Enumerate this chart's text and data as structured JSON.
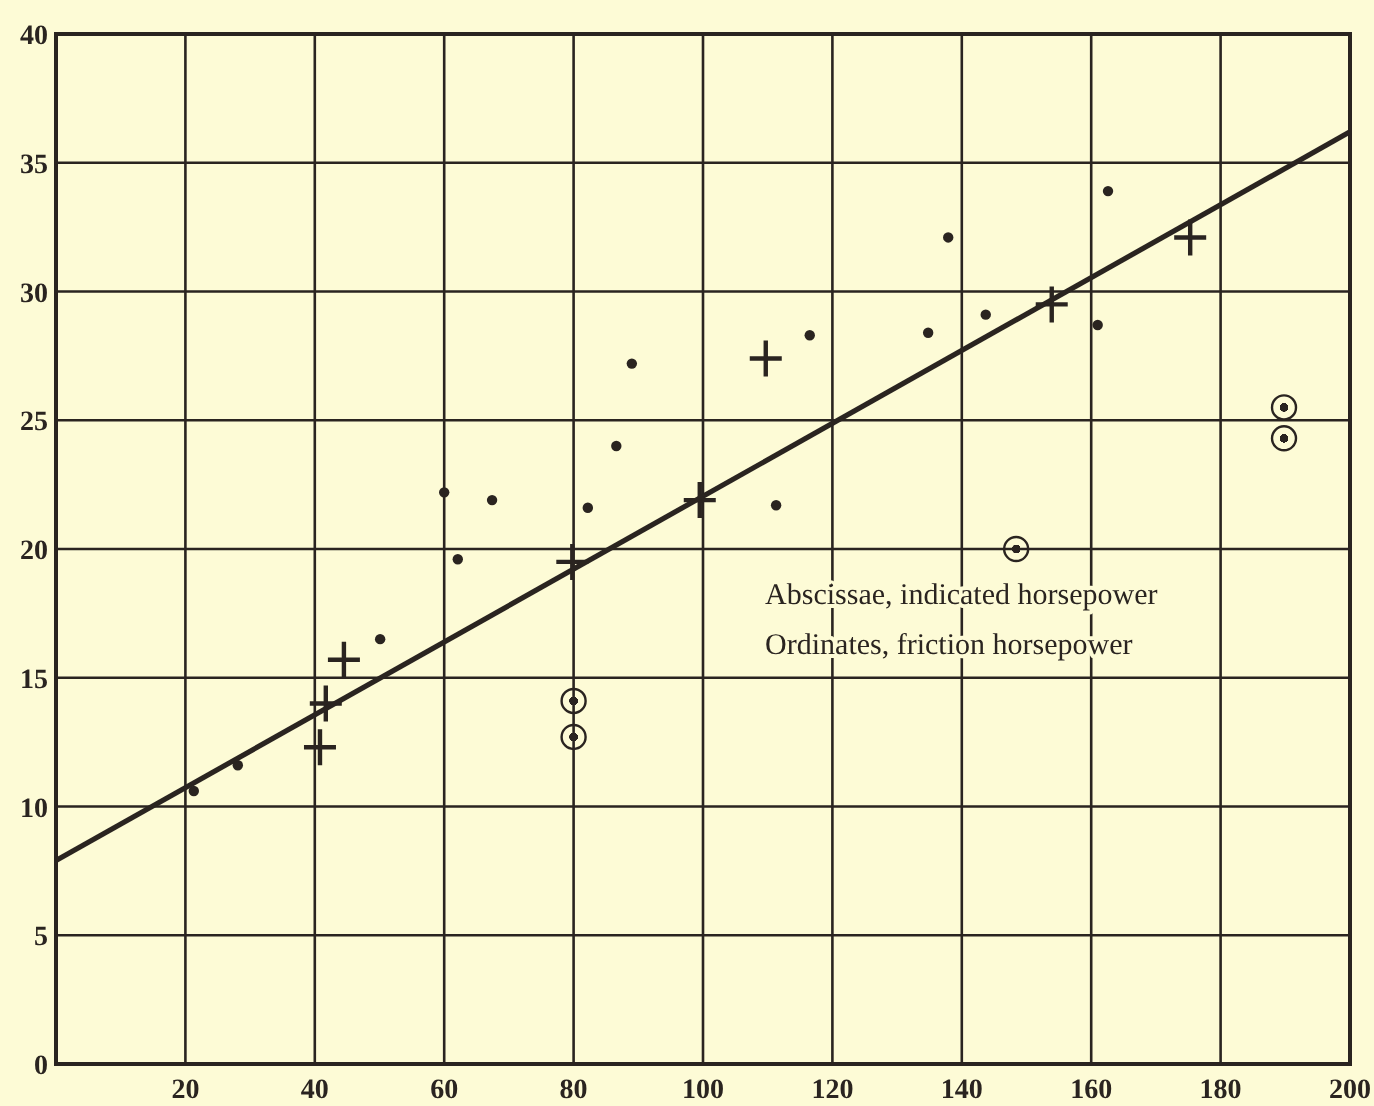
{
  "chart_data": {
    "type": "scatter",
    "xlim": [
      0,
      200
    ],
    "ylim": [
      0,
      40
    ],
    "xticks": [
      {
        "value": 0,
        "label": null
      },
      20,
      40,
      60,
      80,
      100,
      120,
      140,
      160,
      180,
      200
    ],
    "yticks": [
      0,
      5,
      10,
      15,
      20,
      25,
      30,
      35,
      40
    ],
    "grid": true,
    "series": [
      {
        "color": "#2a2420",
        "x": [
          21.3,
          28.1,
          50.1,
          60,
          62.1,
          67.4,
          82.2,
          86.6,
          89,
          111.3,
          116.5,
          134.8,
          137.9,
          143.7,
          161,
          162.6
        ],
        "values": [
          10.6,
          11.6,
          16.5,
          22.2,
          19.6,
          21.9,
          21.6,
          24.0,
          27.2,
          21.7,
          28.3,
          28.4,
          32.1,
          29.1,
          28.7,
          33.9
        ]
      },
      {
        "color": "#2a2420",
        "marker": "cross",
        "x": [
          40.8,
          41.7,
          44.5,
          79.8,
          99.5,
          109.7,
          153.9,
          175.3
        ],
        "values": [
          12.3,
          14.0,
          15.7,
          19.5,
          21.9,
          27.4,
          29.5,
          32.1
        ]
      },
      {
        "color": "#2a2420",
        "marker": "circle",
        "x": [
          80,
          80,
          148.4,
          189.8,
          189.8
        ],
        "values": [
          14.1,
          12.7,
          20.0,
          25.5,
          24.3
        ]
      },
      {
        "type": "line",
        "color": "#2a2420",
        "marker": "none",
        "line_style": "solid",
        "x": [
          0,
          200
        ],
        "values": [
          7.9,
          36.2
        ]
      }
    ],
    "annotations": [
      "Abscissae, indicated horsepower",
      "Ordinates, friction horsepower"
    ]
  }
}
